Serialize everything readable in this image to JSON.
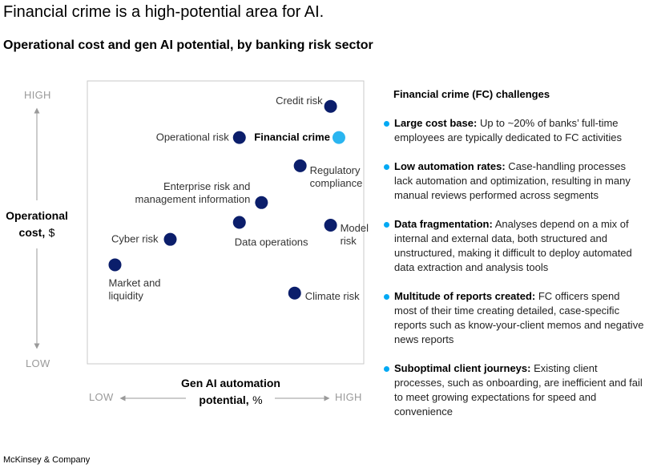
{
  "title": "Financial crime is a high-potential area for AI.",
  "subtitle": "Operational cost and gen AI potential, by banking risk sector",
  "chart_data": {
    "type": "scatter",
    "ylabel": {
      "main": "Operational",
      "sub_bold": "cost,",
      "sub_unit": "$"
    },
    "xlabel": {
      "line1": "Gen AI automation",
      "line2_bold": "potential,",
      "line2_unit": "%"
    },
    "y_low": "LOW",
    "y_high": "HIGH",
    "x_low": "LOW",
    "x_high": "HIGH",
    "xlim": [
      0,
      100
    ],
    "ylim": [
      0,
      100
    ],
    "points": [
      {
        "label": "Credit risk",
        "x": 88,
        "y": 91,
        "color": "#0b1e6b",
        "highlight": false
      },
      {
        "label": "Financial crime",
        "x": 91,
        "y": 80,
        "color": "#2ab5f0",
        "highlight": true
      },
      {
        "label": "Operational risk",
        "x": 55,
        "y": 80,
        "color": "#0b1e6b",
        "highlight": false
      },
      {
        "label": "Regulatory compliance",
        "x": 77,
        "y": 70,
        "color": "#0b1e6b",
        "highlight": false
      },
      {
        "label": "Enterprise risk and management information",
        "x": 63,
        "y": 57,
        "color": "#0b1e6b",
        "highlight": false
      },
      {
        "label": "Data operations",
        "x": 55,
        "y": 50,
        "color": "#0b1e6b",
        "highlight": false
      },
      {
        "label": "Model risk",
        "x": 88,
        "y": 49,
        "color": "#0b1e6b",
        "highlight": false
      },
      {
        "label": "Cyber risk",
        "x": 30,
        "y": 44,
        "color": "#0b1e6b",
        "highlight": false
      },
      {
        "label": "Market and liquidity",
        "x": 10,
        "y": 35,
        "color": "#0b1e6b",
        "highlight": false
      },
      {
        "label": "Climate risk",
        "x": 75,
        "y": 25,
        "color": "#0b1e6b",
        "highlight": false
      }
    ]
  },
  "panel": {
    "title": "Financial crime (FC) challenges",
    "items": [
      {
        "head": "Large cost base:",
        "text": " Up to ~20% of banks’ full-time employees are typically dedicated to FC activities"
      },
      {
        "head": "Low automation rates:",
        "text": " Case-handling processes lack automation and optimization, resulting in many manual reviews performed across segments"
      },
      {
        "head": "Data fragmentation:",
        "text": " Analyses depend on a mix of internal and external data, both structured and unstructured, making it difficult to deploy automated data extraction and analysis tools"
      },
      {
        "head": "Multitude of reports created:",
        "text": " FC officers spend most of their time creating detailed, case-specific reports such as know-your-client memos and negative news reports"
      },
      {
        "head": "Suboptimal client journeys:",
        "text": " Existing client processes, such as onboarding, are inefficient and fail to meet growing expectations for speed and convenience"
      }
    ]
  },
  "footer": "McKinsey & Company",
  "colors": {
    "dark_dot": "#0b1e6b",
    "highlight_dot": "#2ab5f0",
    "bullet": "#00a9f4",
    "axis_grey": "#9a9a9a"
  }
}
